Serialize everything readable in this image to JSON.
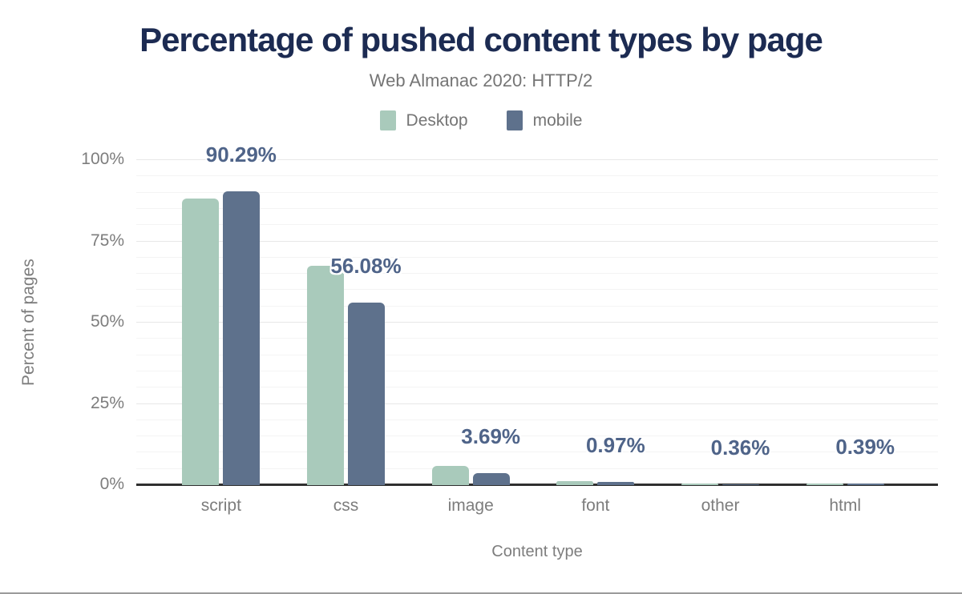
{
  "header": {
    "title": "Percentage of pushed content types by page",
    "subtitle": "Web Almanac 2020: HTTP/2"
  },
  "colors": {
    "title": "#1c2b52",
    "desktop_bar": "#a9cabb",
    "mobile_bar": "#5e718c",
    "data_label": "#4f6489",
    "axis_text": "#7d7d7d",
    "axis_line": "#2f2f2f"
  },
  "chart_data": {
    "type": "bar",
    "title": "Percentage of pushed content types by page",
    "subtitle": "Web Almanac 2020: HTTP/2",
    "categories": [
      "script",
      "css",
      "image",
      "font",
      "other",
      "html"
    ],
    "series": [
      {
        "name": "Desktop",
        "color": "#a9cabb",
        "values": [
          88.2,
          67.5,
          5.9,
          1.2,
          0.6,
          0.6
        ]
      },
      {
        "name": "mobile",
        "color": "#5e718c",
        "values": [
          90.29,
          56.08,
          3.69,
          0.97,
          0.36,
          0.39
        ]
      }
    ],
    "data_labels": [
      "90.29%",
      "56.08%",
      "3.69%",
      "0.97%",
      "0.36%",
      "0.39%"
    ],
    "data_labels_series": "mobile",
    "xlabel": "Content type",
    "ylabel": "Percent of pages",
    "yticks": [
      "0%",
      "25%",
      "50%",
      "75%",
      "100%"
    ],
    "ylim": [
      0,
      100
    ],
    "grid": true,
    "legend_position": "top"
  }
}
